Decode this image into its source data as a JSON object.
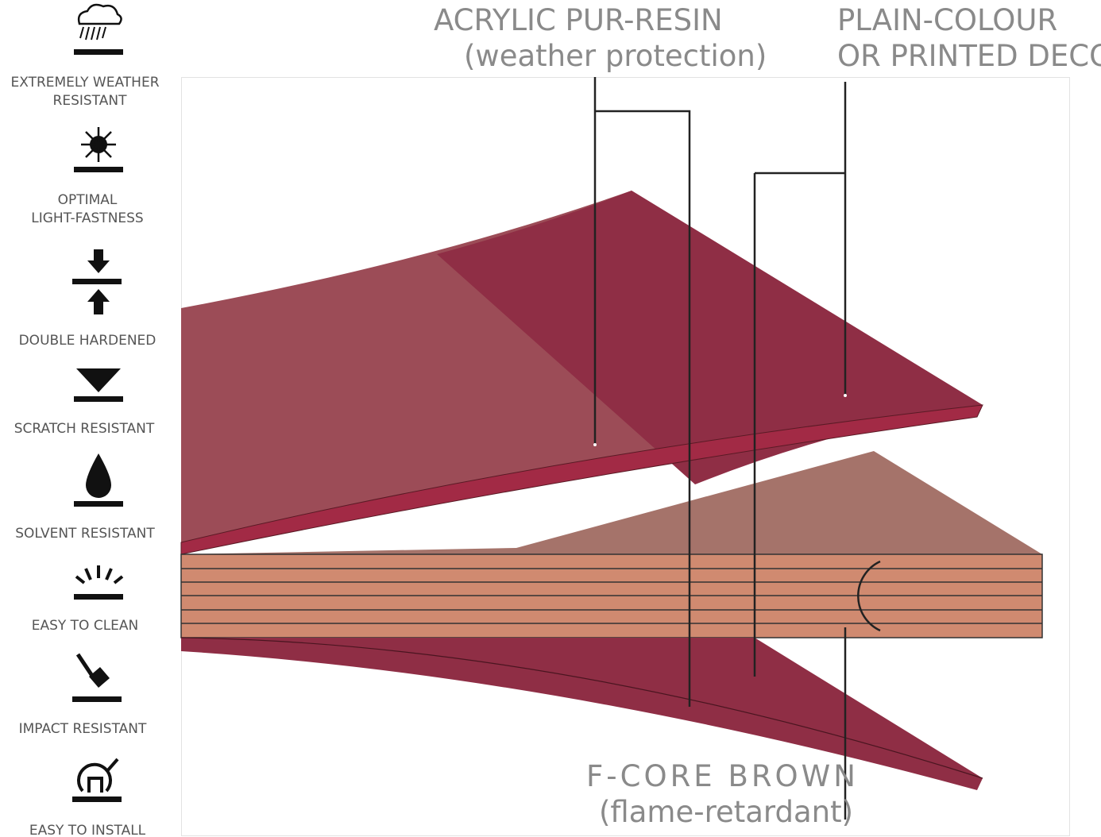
{
  "features": [
    {
      "lines": [
        "EXTREMELY WEATHER",
        "RESISTANT"
      ]
    },
    {
      "lines": [
        "OPTIMAL",
        "LIGHT-FASTNESS"
      ]
    },
    {
      "lines": [
        "DOUBLE HARDENED"
      ]
    },
    {
      "lines": [
        "SCRATCH RESISTANT"
      ]
    },
    {
      "lines": [
        "SOLVENT RESISTANT"
      ]
    },
    {
      "lines": [
        "EASY TO CLEAN"
      ]
    },
    {
      "lines": [
        "IMPACT RESISTANT"
      ]
    },
    {
      "lines": [
        "EASY TO INSTALL"
      ]
    }
  ],
  "layers": [
    {
      "title": "ACRYLIC PUR-RESIN",
      "subtitle": "(weather protection)"
    },
    {
      "title": "PLAIN-COLOUR",
      "subtitle": "OR PRINTED DECOR"
    },
    {
      "title": "F-CORE BROWN",
      "subtitle": "(flame-retardant)"
    }
  ]
}
